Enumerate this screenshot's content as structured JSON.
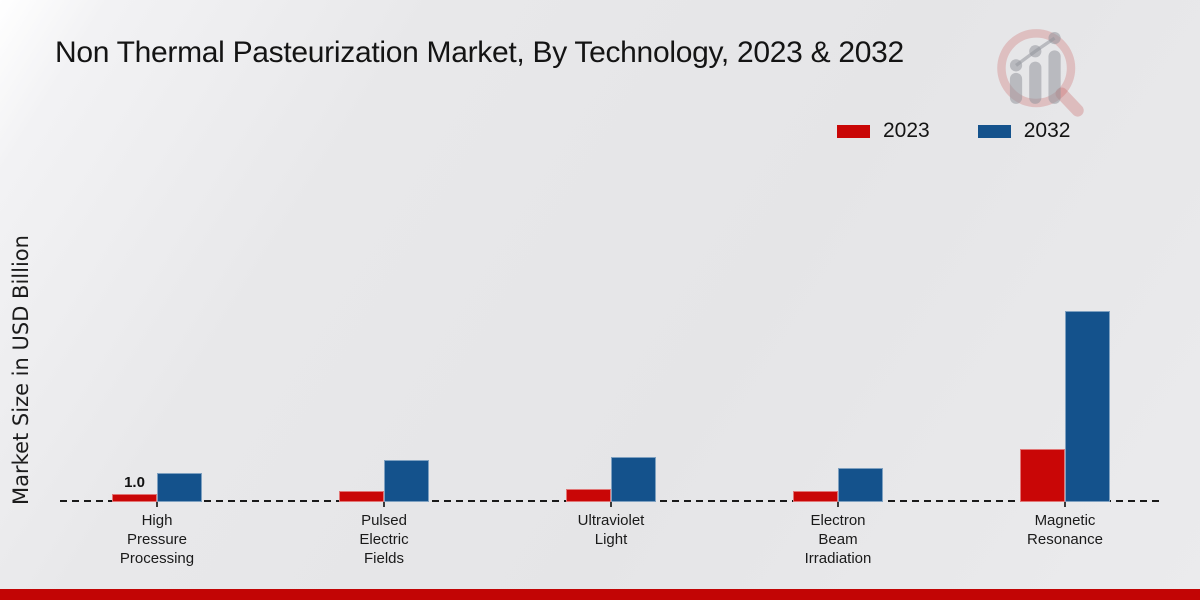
{
  "title": "Non Thermal Pasteurization Market, By Technology, 2023 & 2032",
  "chart_data": {
    "type": "bar",
    "title": "Non Thermal Pasteurization Market, By Technology, 2023 & 2032",
    "categories": [
      "High\nPressure\nProcessing",
      "Pulsed\nElectric\nFields",
      "Ultraviolet\nLight",
      "Electron\nBeam\nIrradiation",
      "Magnetic\nResonance"
    ],
    "series": [
      {
        "name": "2023",
        "color": "#c90606",
        "values": [
          1.0,
          1.3,
          1.5,
          1.25,
          6.2
        ]
      },
      {
        "name": "2032",
        "color": "#14528c",
        "values": [
          3.4,
          5.0,
          5.3,
          4.0,
          22.5
        ]
      }
    ],
    "annotations": [
      {
        "series_index": 0,
        "category_index": 0,
        "text": "1.0"
      }
    ],
    "xlabel": "",
    "ylabel": "Market Size in USD Billion",
    "ylim": [
      0,
      24
    ],
    "grid": false,
    "baseline_style": "dashed",
    "legend_position": "top-right",
    "axis_ticks_visible": false
  },
  "footer": {
    "color": "#c20505"
  },
  "logo": {
    "name": "market-research-future-watermark"
  }
}
